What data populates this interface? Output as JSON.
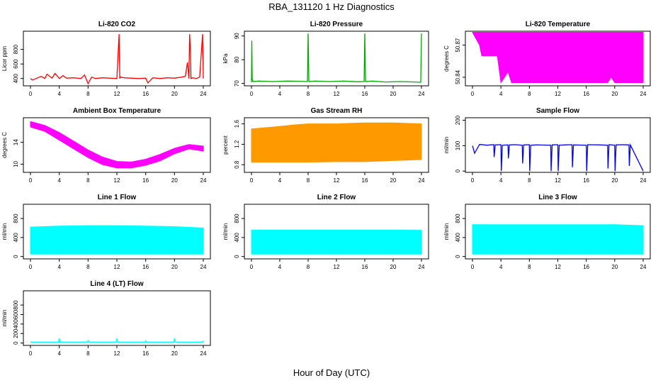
{
  "figure": {
    "title": "RBA_131120  1 Hz Diagnostics",
    "xlabel": "Hour of Day (UTC)"
  },
  "chart_data": [
    {
      "id": "co2",
      "type": "line",
      "title": "Li-820 CO2",
      "ylabel": "Licor ppm",
      "color": "#ff0000",
      "xlim": [
        0,
        24
      ],
      "ylim": [
        300,
        1050
      ],
      "xticks": [
        "0",
        "4",
        "8",
        "12",
        "16",
        "20",
        "24"
      ],
      "yticks": [
        {
          "v": 400,
          "label": "400"
        },
        {
          "v": 600,
          "label": "600"
        },
        {
          "v": 800,
          "label": "800"
        }
      ],
      "series": [
        {
          "x": [
            0,
            0.3,
            1,
            1.5,
            2,
            2.3,
            3,
            3.4,
            4,
            4.5,
            5,
            6,
            7,
            7.5,
            8,
            8.5,
            9,
            10,
            11,
            12,
            12.3,
            12.4,
            12.5,
            13,
            14,
            15,
            16,
            16.3,
            17,
            18,
            19,
            20,
            21,
            21.5,
            21.8,
            22,
            22.1,
            22.2,
            22.3,
            22.5,
            23,
            23.5,
            23.9,
            24
          ],
          "y": [
            400,
            380,
            410,
            430,
            400,
            460,
            405,
            470,
            400,
            440,
            405,
            410,
            400,
            450,
            330,
            420,
            400,
            410,
            405,
            400,
            1010,
            400,
            420,
            410,
            405,
            400,
            405,
            340,
            410,
            400,
            410,
            405,
            420,
            430,
            620,
            400,
            1010,
            800,
            400,
            410,
            400,
            420,
            1010,
            400
          ]
        }
      ]
    },
    {
      "id": "pressure",
      "type": "line",
      "title": "Li-820 Pressure",
      "ylabel": "kPa",
      "color": "#00a800",
      "xlim": [
        0,
        24
      ],
      "ylim": [
        69,
        92
      ],
      "xticks": [
        "0",
        "4",
        "8",
        "12",
        "16",
        "20",
        "24"
      ],
      "yticks": [
        {
          "v": 70,
          "label": "70"
        },
        {
          "v": 80,
          "label": "80"
        },
        {
          "v": 90,
          "label": "90"
        }
      ],
      "series": [
        {
          "x": [
            0,
            0.05,
            0.1,
            0.2,
            1,
            3,
            5,
            7,
            7.9,
            8,
            8.1,
            9,
            11,
            13,
            15,
            15.9,
            16,
            16.1,
            17,
            19,
            21,
            23,
            23.9,
            24
          ],
          "y": [
            70.5,
            88,
            72,
            70.8,
            71,
            70.8,
            71,
            70.9,
            70.8,
            91,
            70.8,
            71,
            70.8,
            71,
            70.7,
            70.8,
            91,
            70.8,
            71,
            70.6,
            70.8,
            70.6,
            70.5,
            91
          ]
        }
      ]
    },
    {
      "id": "licor-temp",
      "type": "area",
      "title": "Li-820 Temperature",
      "ylabel": "degrees C",
      "color": "#ff00ff",
      "xlim": [
        0,
        24
      ],
      "ylim": [
        50.832,
        50.883
      ],
      "xticks": [
        "0",
        "4",
        "8",
        "12",
        "16",
        "20",
        "24"
      ],
      "yticks": [
        {
          "v": 50.84,
          "label": "50.84"
        },
        {
          "v": 50.87,
          "label": "50.87"
        }
      ],
      "series": [
        {
          "x": [
            0,
            1,
            1.3,
            3.5,
            4,
            5,
            5.5,
            19,
            19.5,
            20,
            24
          ],
          "upper": [
            50.882,
            50.882,
            50.882,
            50.882,
            50.882,
            50.882,
            50.882,
            50.882,
            50.882,
            50.882,
            50.882
          ],
          "lower": [
            50.882,
            50.87,
            50.86,
            50.86,
            50.835,
            50.845,
            50.835,
            50.835,
            50.84,
            50.835,
            50.835
          ]
        }
      ]
    },
    {
      "id": "box-temp",
      "type": "area",
      "title": "Ambient Box Temperature",
      "ylabel": "degrees C",
      "color": "#ff00ff",
      "xlim": [
        0,
        24
      ],
      "ylim": [
        8.5,
        18.5
      ],
      "xticks": [
        "0",
        "4",
        "8",
        "12",
        "16",
        "20",
        "24"
      ],
      "yticks": [
        {
          "v": 10,
          "label": "10"
        },
        {
          "v": 14,
          "label": "14"
        }
      ],
      "series": [
        {
          "x": [
            0,
            2,
            4,
            6,
            8,
            10,
            12,
            14,
            16,
            18,
            20,
            22,
            24
          ],
          "upper": [
            17.8,
            17.1,
            15.8,
            14.2,
            12.6,
            11.3,
            10.5,
            10.4,
            10.9,
            11.8,
            12.9,
            13.6,
            13.3
          ],
          "lower": [
            16.8,
            16.0,
            14.4,
            12.8,
            11.2,
            9.9,
            9.3,
            9.3,
            9.8,
            10.6,
            11.9,
            12.8,
            12.4
          ]
        }
      ]
    },
    {
      "id": "gas-rh",
      "type": "area",
      "title": "Gas Stream RH",
      "ylabel": "percent",
      "color": "#ff9900",
      "xlim": [
        0,
        24
      ],
      "ylim": [
        0.65,
        1.72
      ],
      "xticks": [
        "0",
        "4",
        "8",
        "12",
        "16",
        "20",
        "24"
      ],
      "yticks": [
        {
          "v": 0.8,
          "label": "0.8"
        },
        {
          "v": 1.2,
          "label": "1.2"
        },
        {
          "v": 1.6,
          "label": "1.6"
        }
      ],
      "series": [
        {
          "x": [
            0,
            4,
            6,
            8,
            12,
            16,
            20,
            24
          ],
          "upper": [
            1.5,
            1.55,
            1.58,
            1.6,
            1.6,
            1.62,
            1.62,
            1.6
          ],
          "lower": [
            0.85,
            0.85,
            0.85,
            0.85,
            0.86,
            0.86,
            0.88,
            0.9
          ]
        }
      ]
    },
    {
      "id": "sample-flow",
      "type": "line",
      "title": "Sample Flow",
      "ylabel": "ml/min",
      "color": "#0000ff",
      "xlim": [
        0,
        24
      ],
      "ylim": [
        -5,
        210
      ],
      "xticks": [
        "0",
        "4",
        "8",
        "12",
        "16",
        "20",
        "24"
      ],
      "yticks": [
        {
          "v": 0,
          "label": "0"
        },
        {
          "v": 100,
          "label": "100"
        },
        {
          "v": 200,
          "label": "200"
        }
      ],
      "series": [
        {
          "x": [
            0,
            0.3,
            1,
            2,
            3,
            3.05,
            3.2,
            4,
            4.05,
            4.2,
            5,
            5.05,
            5.2,
            6,
            7,
            7.05,
            7.2,
            8,
            8.05,
            8.2,
            9,
            11,
            11.05,
            11.2,
            12,
            12.05,
            12.2,
            13,
            14,
            14.05,
            14.2,
            16,
            16.05,
            16.2,
            18,
            19,
            19.05,
            19.2,
            20,
            20.05,
            20.2,
            21,
            22,
            22.05,
            22.2,
            24
          ],
          "y": [
            100,
            70,
            105,
            102,
            104,
            55,
            103,
            104,
            0,
            102,
            103,
            50,
            103,
            104,
            102,
            30,
            103,
            104,
            0,
            102,
            103,
            102,
            0,
            103,
            104,
            0,
            102,
            103,
            104,
            15,
            103,
            102,
            0,
            104,
            103,
            102,
            10,
            104,
            102,
            0,
            103,
            104,
            103,
            20,
            103,
            0
          ]
        }
      ]
    },
    {
      "id": "line1",
      "type": "area",
      "title": "Line 1 Flow",
      "ylabel": "ml/min",
      "color": "#00ffff",
      "xlim": [
        0,
        24
      ],
      "ylim": [
        -50,
        1100
      ],
      "xticks": [
        "0",
        "4",
        "8",
        "12",
        "16",
        "20",
        "24"
      ],
      "yticks": [
        {
          "v": 0,
          "label": "0"
        },
        {
          "v": 400,
          "label": "400"
        },
        {
          "v": 800,
          "label": "800"
        }
      ],
      "series": [
        {
          "x": [
            0,
            4,
            8,
            12,
            16,
            20,
            24
          ],
          "upper": [
            620,
            640,
            650,
            650,
            640,
            630,
            600
          ],
          "lower": [
            50,
            50,
            50,
            50,
            50,
            50,
            50
          ]
        }
      ]
    },
    {
      "id": "line2",
      "type": "area",
      "title": "Line 2 Flow",
      "ylabel": "ml/min",
      "color": "#00ffff",
      "xlim": [
        0,
        24
      ],
      "ylim": [
        -50,
        1100
      ],
      "xticks": [
        "0",
        "4",
        "8",
        "12",
        "16",
        "20",
        "24"
      ],
      "yticks": [
        {
          "v": 0,
          "label": "0"
        },
        {
          "v": 400,
          "label": "400"
        },
        {
          "v": 800,
          "label": "800"
        }
      ],
      "series": [
        {
          "x": [
            0,
            4,
            8,
            12,
            16,
            20,
            24
          ],
          "upper": [
            560,
            560,
            560,
            560,
            560,
            560,
            550
          ],
          "lower": [
            50,
            50,
            50,
            50,
            50,
            50,
            50
          ]
        }
      ]
    },
    {
      "id": "line3",
      "type": "area",
      "title": "Line 3 Flow",
      "ylabel": "ml/min",
      "color": "#00ffff",
      "xlim": [
        0,
        24
      ],
      "ylim": [
        -50,
        1100
      ],
      "xticks": [
        "0",
        "4",
        "8",
        "12",
        "16",
        "20",
        "24"
      ],
      "yticks": [
        {
          "v": 0,
          "label": "0"
        },
        {
          "v": 400,
          "label": "400"
        },
        {
          "v": 800,
          "label": "800"
        }
      ],
      "series": [
        {
          "x": [
            0,
            4,
            8,
            12,
            16,
            20,
            24
          ],
          "upper": [
            670,
            670,
            670,
            670,
            670,
            670,
            650
          ],
          "lower": [
            50,
            50,
            50,
            50,
            50,
            50,
            50
          ]
        }
      ]
    },
    {
      "id": "line4",
      "type": "line",
      "title": "Line 4 (LT) Flow",
      "ylabel": "ml/min",
      "color": "#00ffff",
      "xlim": [
        0,
        24
      ],
      "ylim": [
        -50,
        1100
      ],
      "xticks": [
        "0",
        "4",
        "8",
        "12",
        "16",
        "20",
        "24"
      ],
      "yticks": [
        {
          "v": 0,
          "label": "0"
        },
        {
          "v": 200,
          "label": "200"
        },
        {
          "v": 400,
          "label": "400"
        },
        {
          "v": 600,
          "label": "600"
        },
        {
          "v": 800,
          "label": "800"
        }
      ],
      "series": [
        {
          "x": [
            0,
            3.9,
            4,
            4.1,
            7.9,
            8,
            8.1,
            11.9,
            12,
            12.1,
            15.9,
            16,
            16.1,
            19.9,
            20,
            20.1,
            23.9,
            24
          ],
          "y": [
            20,
            20,
            100,
            20,
            20,
            50,
            20,
            20,
            100,
            20,
            20,
            50,
            20,
            20,
            100,
            20,
            20,
            50
          ]
        }
      ]
    }
  ]
}
